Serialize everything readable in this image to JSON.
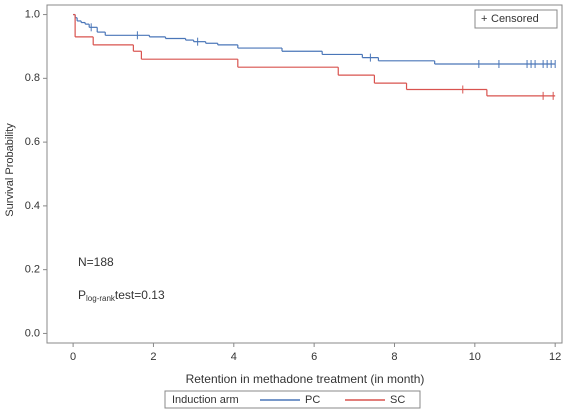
{
  "chart_data": {
    "type": "step",
    "xlabel": "Retention in methadone treatment (in month)",
    "ylabel": "Survival Probability",
    "xlim": [
      -0.65,
      12.17
    ],
    "ylim": [
      -0.03,
      1.03
    ],
    "xticks": [
      0,
      2,
      4,
      6,
      8,
      10,
      12
    ],
    "yticks": [
      {
        "value": 0,
        "label": "0.0"
      },
      0.2,
      0.4,
      0.6,
      0.8,
      {
        "value": 1,
        "label": "1.0"
      }
    ],
    "legend_title": "Induction arm",
    "censor_label": "Censored",
    "censor_symbol": "+",
    "annotations": {
      "n": "N=188",
      "p": "P",
      "p_sub": "log-rank",
      "p_rest": "test=0.13"
    },
    "series": [
      {
        "name": "PC",
        "color": "#4a76b8",
        "x": [
          0,
          0.05,
          0.1,
          0.2,
          0.3,
          0.4,
          0.6,
          0.8,
          1.9,
          2.3,
          2.8,
          3.0,
          3.3,
          3.6,
          4.1,
          5.2,
          6.2,
          7.2,
          7.6,
          9.0,
          12.0
        ],
        "values": [
          1.0,
          0.99,
          0.98,
          0.975,
          0.97,
          0.96,
          0.945,
          0.935,
          0.93,
          0.925,
          0.92,
          0.915,
          0.91,
          0.905,
          0.895,
          0.885,
          0.875,
          0.865,
          0.855,
          0.845,
          0.845
        ],
        "censored_x": [
          0.45,
          1.6,
          3.1,
          7.4,
          10.1,
          10.6,
          11.3,
          11.4,
          11.5,
          11.7,
          11.8,
          11.9,
          12.0
        ],
        "censored_values": [
          0.96,
          0.935,
          0.915,
          0.865,
          0.845,
          0.845,
          0.845,
          0.845,
          0.845,
          0.845,
          0.845,
          0.845,
          0.845
        ]
      },
      {
        "name": "SC",
        "color": "#d9534f",
        "x": [
          0,
          0.05,
          0.5,
          1.5,
          1.7,
          4.1,
          6.6,
          7.5,
          8.3,
          10.3,
          12.0
        ],
        "values": [
          1.0,
          0.93,
          0.905,
          0.885,
          0.86,
          0.835,
          0.81,
          0.785,
          0.765,
          0.745,
          0.745
        ],
        "censored_x": [
          9.7,
          11.7,
          11.95
        ],
        "censored_values": [
          0.765,
          0.745,
          0.745
        ]
      }
    ]
  }
}
